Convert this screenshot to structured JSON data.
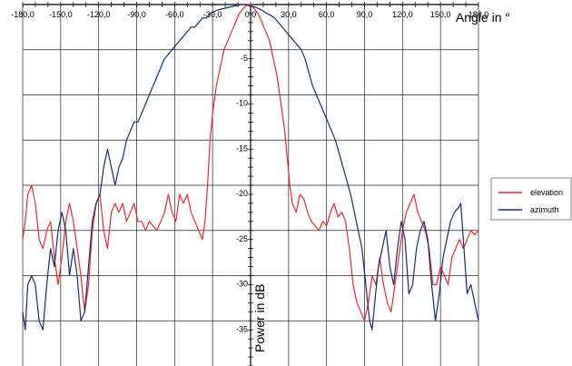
{
  "chart_data": {
    "type": "line",
    "title": "",
    "xlabel": "Angle in °",
    "ylabel": "Power in dB",
    "xlim": [
      -180,
      180
    ],
    "ylim": [
      -40,
      0
    ],
    "x_ticks": [
      -180,
      -150,
      -120,
      -90,
      -60,
      -30,
      0,
      30,
      60,
      90,
      120,
      150,
      180
    ],
    "x_tick_labels": [
      "-180,0",
      "-150,0",
      "-120,0",
      "-90,0",
      "-60,0",
      "-30,0",
      "0,0",
      "30,0",
      "60,0",
      "90,0",
      "120,0",
      "150,0",
      "180,0"
    ],
    "y_ticks": [
      -5,
      -10,
      -15,
      -20,
      -25,
      -30,
      -35
    ],
    "y_tick_labels": [
      "-5",
      "-10",
      "-15",
      "-20",
      "-25",
      "-30",
      "-35"
    ],
    "grid": true,
    "legend_position": "right",
    "series": [
      {
        "name": "elevation",
        "color": "#e8282e",
        "points": [
          [
            -180,
            -26
          ],
          [
            -178,
            -24
          ],
          [
            -176,
            -21
          ],
          [
            -173,
            -20
          ],
          [
            -170,
            -22
          ],
          [
            -167,
            -26
          ],
          [
            -164,
            -27
          ],
          [
            -161,
            -25
          ],
          [
            -158,
            -24
          ],
          [
            -155,
            -28
          ],
          [
            -152,
            -31
          ],
          [
            -149,
            -28
          ],
          [
            -146,
            -24
          ],
          [
            -143,
            -22
          ],
          [
            -140,
            -24
          ],
          [
            -137,
            -27
          ],
          [
            -134,
            -30
          ],
          [
            -131,
            -34
          ],
          [
            -128,
            -31
          ],
          [
            -125,
            -25
          ],
          [
            -122,
            -22
          ],
          [
            -119,
            -21
          ],
          [
            -116,
            -25
          ],
          [
            -113,
            -27
          ],
          [
            -110,
            -23
          ],
          [
            -107,
            -22
          ],
          [
            -104,
            -23
          ],
          [
            -101,
            -22
          ],
          [
            -98,
            -24
          ],
          [
            -95,
            -23
          ],
          [
            -92,
            -22
          ],
          [
            -89,
            -24
          ],
          [
            -86,
            -24
          ],
          [
            -83,
            -25
          ],
          [
            -80,
            -24
          ],
          [
            -77,
            -24.5
          ],
          [
            -74,
            -25
          ],
          [
            -71,
            -24
          ],
          [
            -68,
            -23
          ],
          [
            -65,
            -21
          ],
          [
            -62,
            -23
          ],
          [
            -59,
            -24
          ],
          [
            -56,
            -21
          ],
          [
            -53,
            -22
          ],
          [
            -50,
            -21
          ],
          [
            -47,
            -23
          ],
          [
            -44,
            -24
          ],
          [
            -41,
            -25
          ],
          [
            -38,
            -26
          ],
          [
            -36,
            -24
          ],
          [
            -34,
            -20
          ],
          [
            -32,
            -15
          ],
          [
            -30,
            -12
          ],
          [
            -27,
            -9
          ],
          [
            -24,
            -7
          ],
          [
            -21,
            -5
          ],
          [
            -18,
            -4
          ],
          [
            -15,
            -3
          ],
          [
            -12,
            -2
          ],
          [
            -9,
            -1
          ],
          [
            -6,
            -0.5
          ],
          [
            -3,
            0
          ],
          [
            0,
            0
          ],
          [
            3,
            -0.5
          ],
          [
            6,
            -1
          ],
          [
            9,
            -2
          ],
          [
            12,
            -3
          ],
          [
            15,
            -4
          ],
          [
            18,
            -6
          ],
          [
            21,
            -8
          ],
          [
            24,
            -11
          ],
          [
            27,
            -14
          ],
          [
            29,
            -17
          ],
          [
            31,
            -20
          ],
          [
            33,
            -22
          ],
          [
            36,
            -23
          ],
          [
            39,
            -21
          ],
          [
            42,
            -21.5
          ],
          [
            45,
            -23
          ],
          [
            48,
            -24
          ],
          [
            51,
            -24.5
          ],
          [
            54,
            -25
          ],
          [
            57,
            -24
          ],
          [
            60,
            -24.5
          ],
          [
            63,
            -23
          ],
          [
            66,
            -22
          ],
          [
            69,
            -23.5
          ],
          [
            72,
            -23
          ],
          [
            75,
            -24
          ],
          [
            78,
            -27
          ],
          [
            81,
            -31
          ],
          [
            84,
            -33
          ],
          [
            87,
            -34
          ],
          [
            90,
            -35
          ],
          [
            93,
            -33
          ],
          [
            96,
            -30
          ],
          [
            99,
            -31
          ],
          [
            102,
            -28
          ],
          [
            105,
            -31
          ],
          [
            108,
            -33
          ],
          [
            111,
            -34
          ],
          [
            114,
            -31
          ],
          [
            117,
            -28
          ],
          [
            120,
            -25
          ],
          [
            123,
            -23
          ],
          [
            126,
            -22
          ],
          [
            129,
            -21
          ],
          [
            132,
            -23
          ],
          [
            135,
            -24
          ],
          [
            138,
            -25
          ],
          [
            141,
            -27
          ],
          [
            144,
            -31
          ],
          [
            147,
            -31
          ],
          [
            150,
            -29
          ],
          [
            153,
            -30
          ],
          [
            156,
            -31
          ],
          [
            159,
            -28
          ],
          [
            162,
            -27
          ],
          [
            165,
            -26
          ],
          [
            168,
            -27
          ],
          [
            171,
            -26
          ],
          [
            174,
            -25
          ],
          [
            177,
            -25.5
          ],
          [
            180,
            -25
          ]
        ]
      },
      {
        "name": "azimuth",
        "color": "#1a2a6e",
        "points": [
          [
            -180,
            -34
          ],
          [
            -178,
            -36
          ],
          [
            -176,
            -31
          ],
          [
            -173,
            -30
          ],
          [
            -170,
            -31
          ],
          [
            -167,
            -35
          ],
          [
            -164,
            -36
          ],
          [
            -161,
            -31
          ],
          [
            -158,
            -27
          ],
          [
            -155,
            -29
          ],
          [
            -152,
            -25
          ],
          [
            -149,
            -23
          ],
          [
            -146,
            -25
          ],
          [
            -143,
            -30
          ],
          [
            -140,
            -27
          ],
          [
            -137,
            -30
          ],
          [
            -134,
            -35
          ],
          [
            -131,
            -34
          ],
          [
            -128,
            -29
          ],
          [
            -125,
            -24
          ],
          [
            -122,
            -22
          ],
          [
            -119,
            -21
          ],
          [
            -116,
            -18
          ],
          [
            -113,
            -16
          ],
          [
            -110,
            -18
          ],
          [
            -107,
            -20
          ],
          [
            -104,
            -18
          ],
          [
            -101,
            -17
          ],
          [
            -98,
            -15
          ],
          [
            -95,
            -14
          ],
          [
            -92,
            -13
          ],
          [
            -89,
            -13
          ],
          [
            -86,
            -12
          ],
          [
            -83,
            -11
          ],
          [
            -80,
            -10
          ],
          [
            -77,
            -9
          ],
          [
            -74,
            -8
          ],
          [
            -71,
            -7
          ],
          [
            -68,
            -6
          ],
          [
            -65,
            -5.5
          ],
          [
            -62,
            -5
          ],
          [
            -59,
            -4.5
          ],
          [
            -56,
            -4
          ],
          [
            -53,
            -3.5
          ],
          [
            -50,
            -3
          ],
          [
            -47,
            -2.5
          ],
          [
            -44,
            -2.5
          ],
          [
            -41,
            -2
          ],
          [
            -38,
            -1.5
          ],
          [
            -35,
            -1.5
          ],
          [
            -32,
            -1
          ],
          [
            -29,
            -0.8
          ],
          [
            -26,
            -0.6
          ],
          [
            -23,
            -0.5
          ],
          [
            -20,
            -0.4
          ],
          [
            -17,
            -0.3
          ],
          [
            -14,
            -0.2
          ],
          [
            -11,
            -0.1
          ],
          [
            -8,
            0
          ],
          [
            -5,
            0
          ],
          [
            -2,
            -0.1
          ],
          [
            1,
            -0.2
          ],
          [
            4,
            -0.3
          ],
          [
            7,
            -0.5
          ],
          [
            10,
            -0.7
          ],
          [
            13,
            -1
          ],
          [
            16,
            -1.2
          ],
          [
            19,
            -1.5
          ],
          [
            22,
            -2
          ],
          [
            25,
            -2.5
          ],
          [
            28,
            -3
          ],
          [
            31,
            -3.5
          ],
          [
            34,
            -4
          ],
          [
            37,
            -4.5
          ],
          [
            40,
            -5
          ],
          [
            43,
            -6
          ],
          [
            46,
            -7.5
          ],
          [
            49,
            -9
          ],
          [
            52,
            -10
          ],
          [
            55,
            -11
          ],
          [
            58,
            -12
          ],
          [
            61,
            -13
          ],
          [
            64,
            -14
          ],
          [
            67,
            -15
          ],
          [
            70,
            -16.5
          ],
          [
            73,
            -18
          ],
          [
            76,
            -19.5
          ],
          [
            79,
            -21
          ],
          [
            82,
            -23
          ],
          [
            85,
            -25
          ],
          [
            88,
            -27
          ],
          [
            91,
            -31
          ],
          [
            94,
            -35
          ],
          [
            96,
            -36
          ],
          [
            98,
            -33
          ],
          [
            101,
            -29
          ],
          [
            104,
            -27
          ],
          [
            107,
            -25
          ],
          [
            110,
            -29
          ],
          [
            113,
            -31
          ],
          [
            116,
            -27
          ],
          [
            119,
            -24
          ],
          [
            122,
            -26
          ],
          [
            125,
            -32
          ],
          [
            128,
            -31
          ],
          [
            131,
            -27
          ],
          [
            134,
            -25
          ],
          [
            137,
            -24
          ],
          [
            140,
            -26
          ],
          [
            143,
            -31
          ],
          [
            146,
            -35
          ],
          [
            149,
            -32
          ],
          [
            152,
            -28
          ],
          [
            155,
            -26
          ],
          [
            158,
            -24
          ],
          [
            161,
            -23
          ],
          [
            164,
            -22.5
          ],
          [
            166,
            -22
          ],
          [
            168,
            -26
          ],
          [
            171,
            -32
          ],
          [
            174,
            -31
          ],
          [
            177,
            -33
          ],
          [
            180,
            -35
          ]
        ]
      }
    ]
  }
}
